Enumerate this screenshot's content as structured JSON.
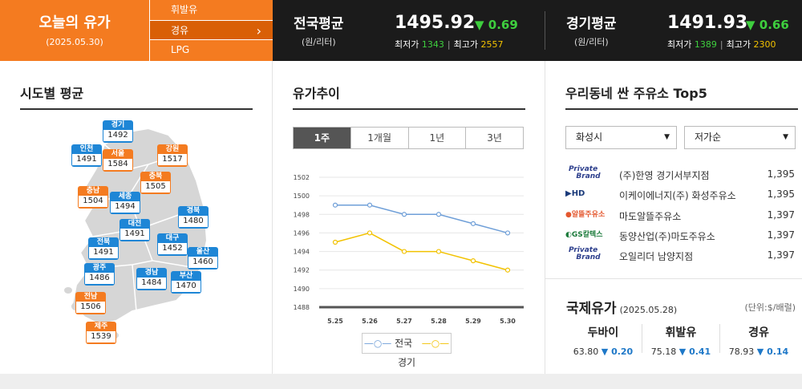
{
  "header": {
    "today_title": "오늘의 유가",
    "today_date": "(2025.05.30)",
    "fuel_menu": [
      {
        "label": "휘발유",
        "active": false
      },
      {
        "label": "경유",
        "active": true
      },
      {
        "label": "LPG",
        "active": false
      }
    ],
    "national": {
      "label": "전국평균",
      "unit": "(원/리터)",
      "price": "1495.92",
      "change": "▼ 0.69",
      "min_label": "최저가",
      "min": "1343",
      "max_label": "최고가",
      "max": "2557"
    },
    "gyeonggi": {
      "label": "경기평균",
      "unit": "(원/리터)",
      "price": "1491.93",
      "change": "▼ 0.66",
      "min_label": "최저가",
      "min": "1389",
      "max_label": "최고가",
      "max": "2300"
    }
  },
  "regional": {
    "title": "시도별 평균",
    "regions": [
      {
        "name": "경기",
        "value": "1492",
        "color": "blue"
      },
      {
        "name": "인천",
        "value": "1491",
        "color": "blue"
      },
      {
        "name": "서울",
        "value": "1584",
        "color": "orange"
      },
      {
        "name": "강원",
        "value": "1517",
        "color": "orange"
      },
      {
        "name": "충북",
        "value": "1505",
        "color": "orange"
      },
      {
        "name": "충남",
        "value": "1504",
        "color": "orange"
      },
      {
        "name": "세종",
        "value": "1494",
        "color": "blue"
      },
      {
        "name": "경북",
        "value": "1480",
        "color": "blue"
      },
      {
        "name": "대전",
        "value": "1491",
        "color": "blue"
      },
      {
        "name": "대구",
        "value": "1452",
        "color": "blue"
      },
      {
        "name": "전북",
        "value": "1491",
        "color": "blue"
      },
      {
        "name": "울산",
        "value": "1460",
        "color": "blue"
      },
      {
        "name": "광주",
        "value": "1486",
        "color": "blue"
      },
      {
        "name": "경남",
        "value": "1484",
        "color": "blue"
      },
      {
        "name": "부산",
        "value": "1470",
        "color": "blue"
      },
      {
        "name": "전남",
        "value": "1506",
        "color": "orange"
      },
      {
        "name": "제주",
        "value": "1539",
        "color": "orange"
      }
    ]
  },
  "trend": {
    "title": "유가추이",
    "tabs": [
      {
        "label": "1주",
        "active": true
      },
      {
        "label": "1개월",
        "active": false
      },
      {
        "label": "1년",
        "active": false
      },
      {
        "label": "3년",
        "active": false
      }
    ]
  },
  "chart_data": {
    "type": "line",
    "x": [
      "5.25",
      "5.26",
      "5.27",
      "5.28",
      "5.29",
      "5.30"
    ],
    "series": [
      {
        "name": "전국",
        "values": [
          1499,
          1499,
          1498,
          1498,
          1497,
          1496
        ],
        "color": "#6f9fd8"
      },
      {
        "name": "경기",
        "values": [
          1495,
          1496,
          1494,
          1494,
          1493,
          1492
        ],
        "color": "#f2c200"
      }
    ],
    "yticks": [
      "1502",
      "1500",
      "1498",
      "1496",
      "1494",
      "1492",
      "1490",
      "1488"
    ],
    "ylim": [
      1488,
      1502
    ],
    "grid": true,
    "legend": "bottom"
  },
  "top5": {
    "title": "우리동네 싼 주유소 Top5",
    "city_select": "화성시",
    "sort_select": "저가순",
    "stations": [
      {
        "brand": "Private Brand",
        "name": "(주)한영 경기서부지점",
        "price": "1,395"
      },
      {
        "brand": "HD",
        "name": "이케이에너지(주) 화성주유소",
        "price": "1,395"
      },
      {
        "brand": "알뜰주유소",
        "name": "마도알뜰주유소",
        "price": "1,397"
      },
      {
        "brand": "GS칼텍스",
        "name": "동양산업(주)마도주유소",
        "price": "1,397"
      },
      {
        "brand": "Private Brand",
        "name": "오일리더 남양지점",
        "price": "1,397"
      }
    ]
  },
  "international": {
    "title": "국제유가",
    "date": "(2025.05.28)",
    "unit": "(단위:$/배럴)",
    "items": [
      {
        "name": "두바이",
        "value": "63.80",
        "change": "▼ 0.20"
      },
      {
        "name": "휘발유",
        "value": "75.18",
        "change": "▼ 0.41"
      },
      {
        "name": "경유",
        "value": "78.93",
        "change": "▼ 0.14"
      }
    ]
  }
}
